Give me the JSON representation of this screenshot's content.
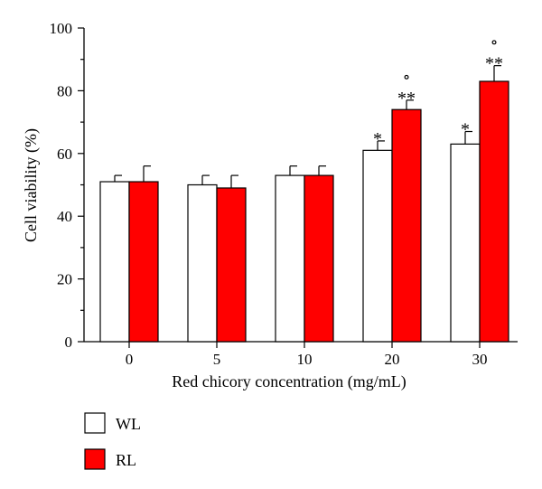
{
  "chart_data": {
    "type": "bar",
    "title": "",
    "xlabel": "Red chicory concentration (mg/mL)",
    "ylabel": "Cell viability (%)",
    "ylim": [
      0,
      100
    ],
    "yticks": [
      0,
      20,
      40,
      60,
      80,
      100
    ],
    "y_tick_labels": [
      "0",
      "20",
      "40",
      "60",
      "80",
      "100"
    ],
    "categories": [
      "0",
      "5",
      "10",
      "20",
      "30"
    ],
    "series": [
      {
        "name": "WL",
        "color": "#ffffff",
        "values": [
          51,
          50,
          53,
          61,
          63
        ],
        "errors": [
          2,
          3,
          3,
          3,
          4
        ],
        "annotations": [
          "",
          "",
          "",
          "*",
          "*"
        ]
      },
      {
        "name": "RL",
        "color": "#ff0000",
        "values": [
          51,
          49,
          53,
          74,
          83
        ],
        "errors": [
          5,
          4,
          3,
          3,
          5
        ],
        "annotations": [
          "",
          "",
          "",
          "∘\n**",
          "∘\n**"
        ]
      }
    ],
    "legend": {
      "position": "bottom-left",
      "entries": [
        {
          "label": "WL",
          "color": "#ffffff"
        },
        {
          "label": "RL",
          "color": "#ff0000"
        }
      ]
    }
  }
}
